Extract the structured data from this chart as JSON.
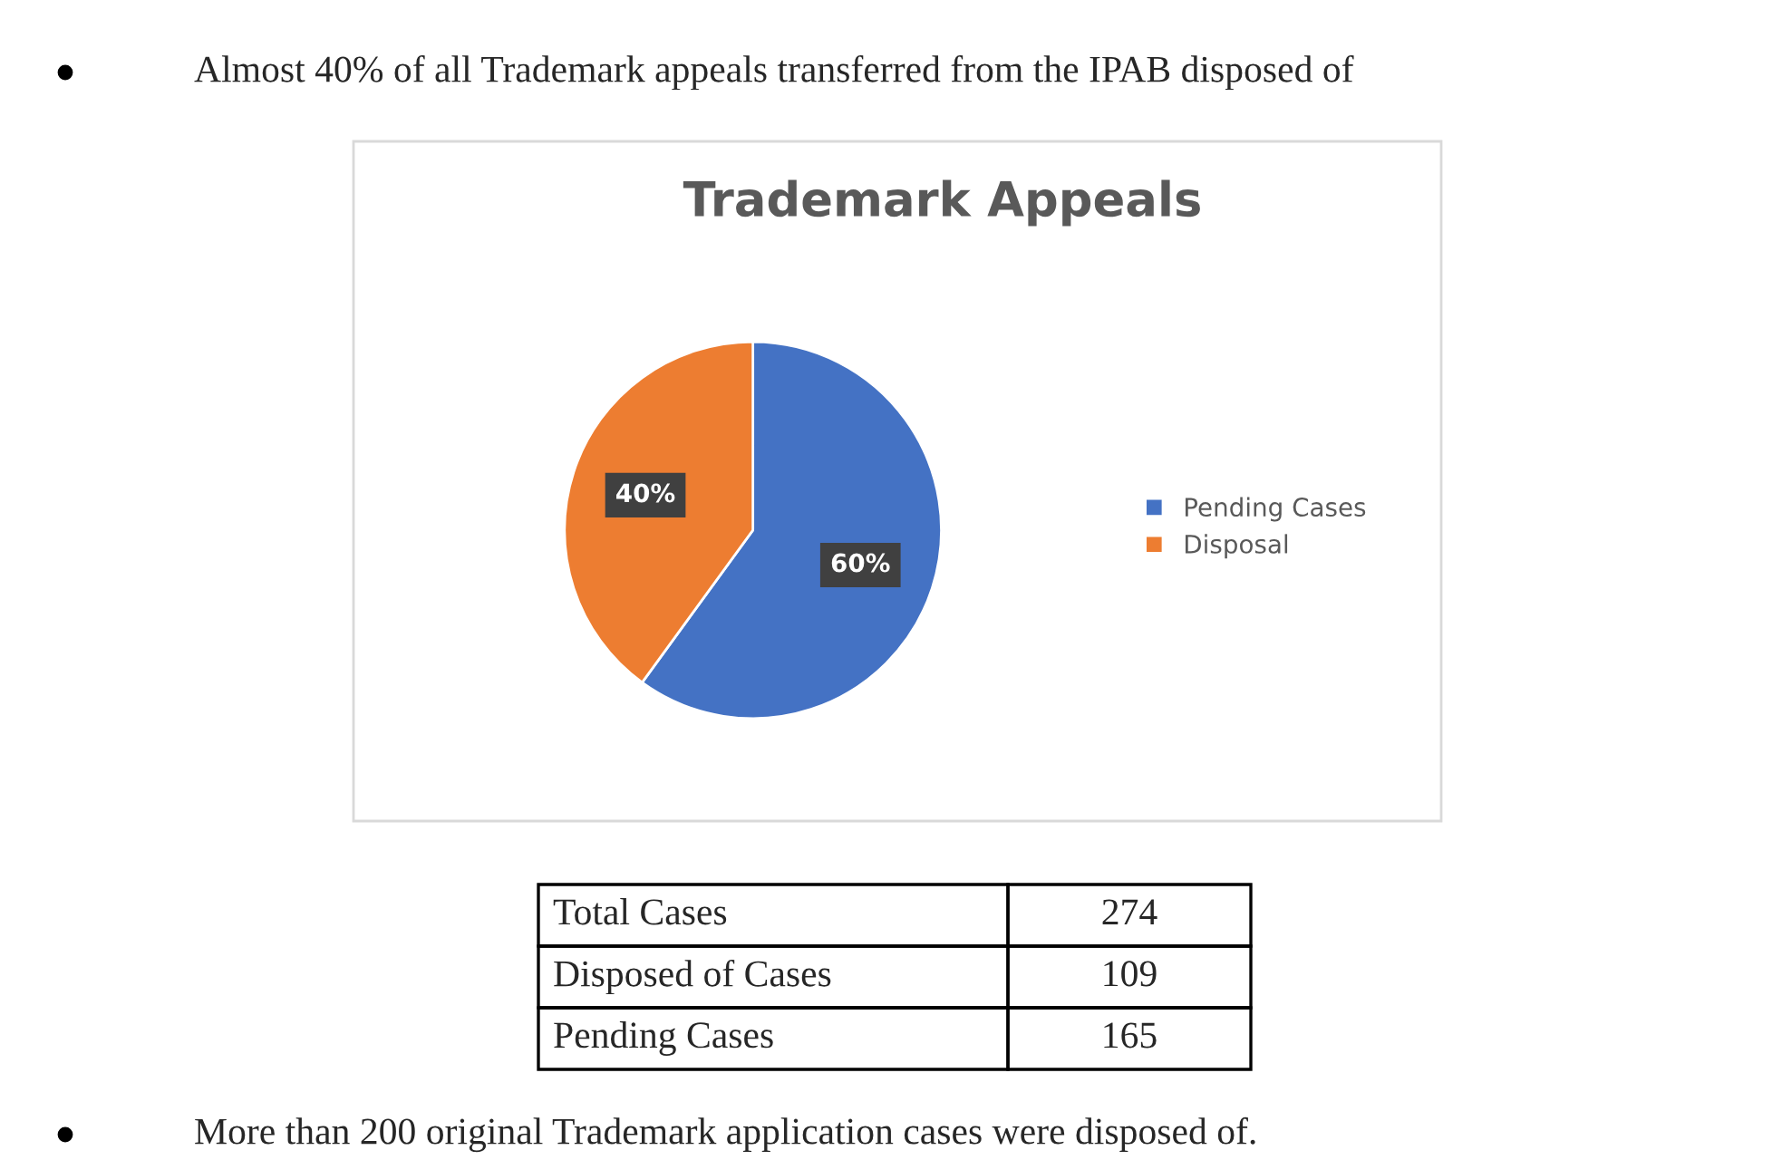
{
  "chart_data": {
    "type": "pie",
    "title": "Trademark Appeals",
    "categories": [
      "Pending Cases",
      "Disposal"
    ],
    "values": [
      60,
      40
    ],
    "colors": [
      "#4472c4",
      "#ed7d31"
    ],
    "value_labels": [
      "60%",
      "40%"
    ],
    "legend": "right",
    "annotations": [
      "Almost 40% of all Trademark appeals transferred from the IPAB disposed of",
      "Total Cases",
      "274",
      "Disposed of Cases",
      "109",
      "Pending Cases",
      "165",
      "More than 200 original Trademark application cases were disposed of."
    ]
  }
}
